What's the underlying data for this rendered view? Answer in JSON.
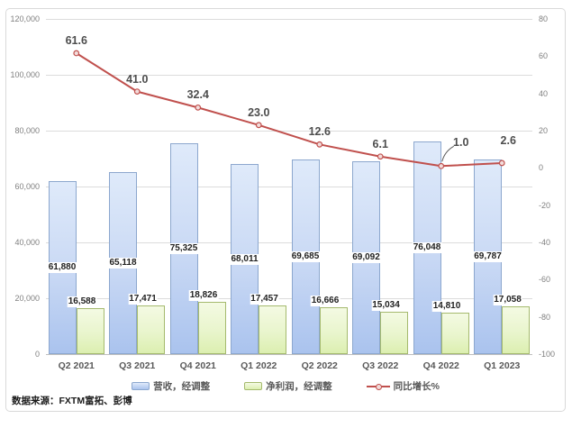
{
  "source_note": "数据来源：FXTM富拓、彭博",
  "colors": {
    "bar_blue_border": "#8ca7ce",
    "bar_blue_fill_top": "#dfeafa",
    "bar_blue_fill_bottom": "#aac3ee",
    "bar_green_border": "#a5ba6e",
    "bar_green_fill_top": "#f4fae3",
    "bar_green_fill_bottom": "#dcefb0",
    "line_red": "#c0504d",
    "marker_fill": "#f2dcdb",
    "grid": "#dcdcdc",
    "axis_text": "#808080",
    "label_text": "#1f1f1f",
    "line_label_text": "#4d4d4d",
    "figure_border": "#d9d9d9"
  },
  "chart_data": {
    "type": "combo",
    "grid": true,
    "legend_position": "bottom",
    "categories": [
      "Q2 2021",
      "Q3 2021",
      "Q4 2021",
      "Q1 2022",
      "Q2 2022",
      "Q3 2022",
      "Q4 2022",
      "Q1 2023"
    ],
    "series": [
      {
        "name": "营收，经调整",
        "type": "bar",
        "axis": "left",
        "values": [
          61880,
          65118,
          75325,
          68011,
          69685,
          69092,
          76048,
          69787
        ],
        "labels": [
          "61,880",
          "65,118",
          "75,325",
          "68,011",
          "69,685",
          "69,092",
          "76,048",
          "69,787"
        ]
      },
      {
        "name": "净利润，经调整",
        "type": "bar",
        "axis": "left",
        "values": [
          16588,
          17471,
          18826,
          17457,
          16666,
          15034,
          14810,
          17058
        ],
        "labels": [
          "16,588",
          "17,471",
          "18,826",
          "17,457",
          "16,666",
          "15,034",
          "14,810",
          "17,058"
        ]
      },
      {
        "name": "同比增长%",
        "type": "line",
        "axis": "right",
        "values": [
          61.6,
          41.0,
          32.4,
          23.0,
          12.6,
          6.1,
          1.0,
          2.6
        ],
        "labels": [
          "61.6",
          "41.0",
          "32.4",
          "23.0",
          "12.6",
          "6.1",
          "1.0",
          "2.6"
        ]
      }
    ],
    "left_axis": {
      "min": 0,
      "max": 120000,
      "step": 20000,
      "tick_labels": [
        "120,000",
        "100,000",
        "80,000",
        "60,000",
        "40,000",
        "20,000",
        "0"
      ]
    },
    "right_axis": {
      "min": -100,
      "max": 80,
      "step": 20,
      "tick_labels": [
        "80",
        "60",
        "40",
        "20",
        "0",
        "-20",
        "-40",
        "-60",
        "-80",
        "-100"
      ]
    }
  }
}
